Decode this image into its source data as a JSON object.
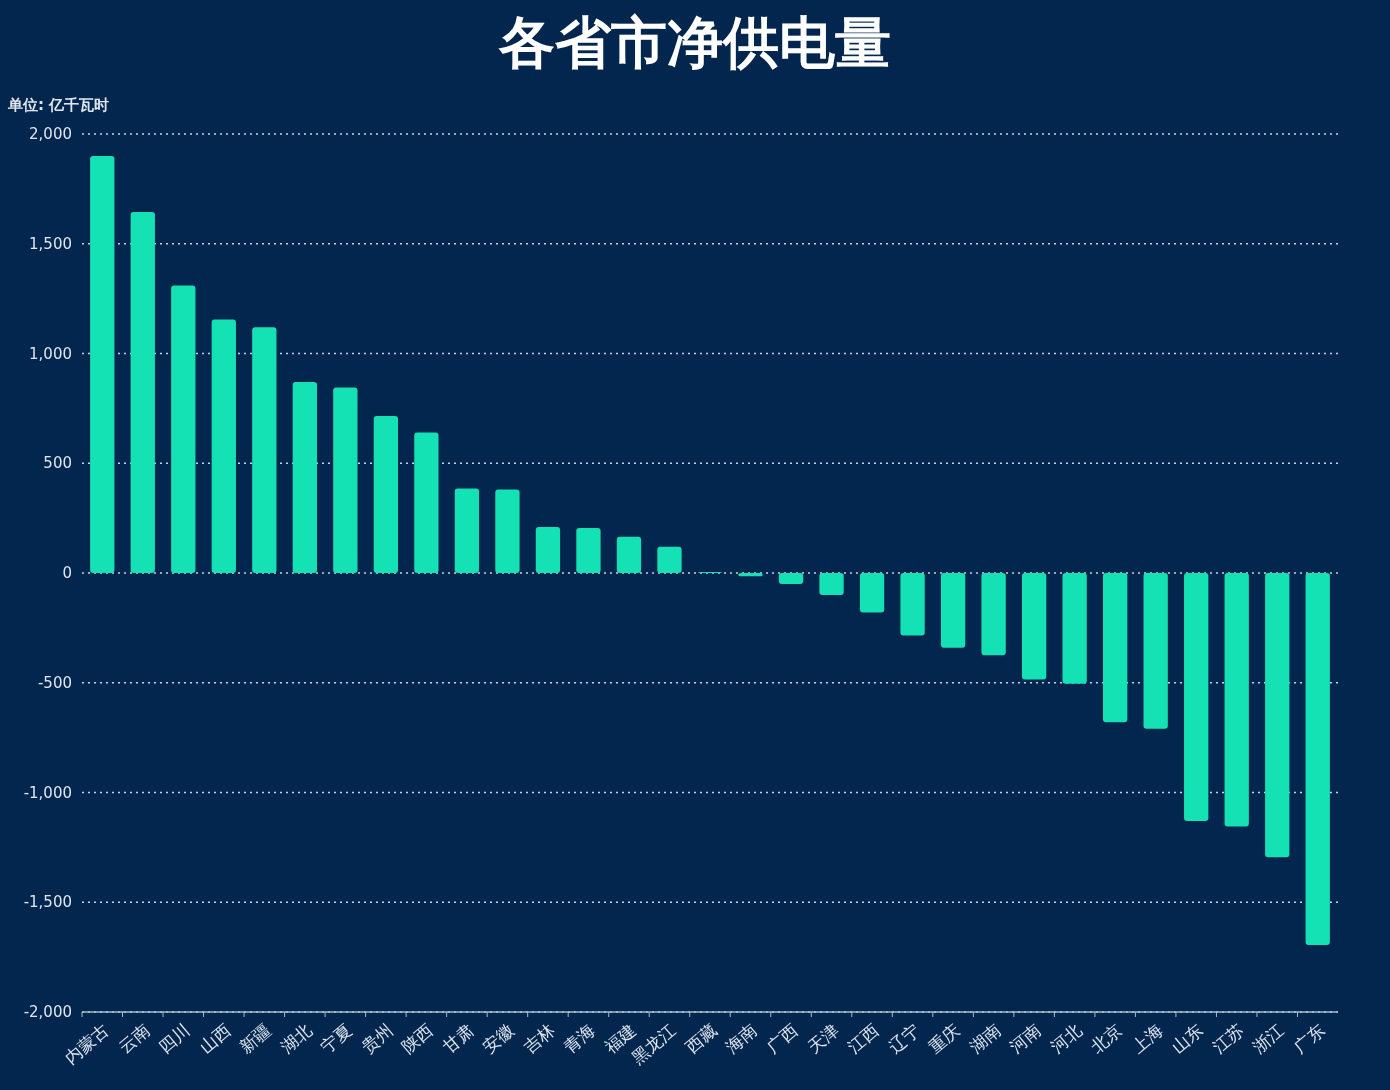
{
  "chart_data": {
    "type": "bar",
    "title": "各省市净供电量",
    "ylabel": "单位: 亿千瓦时",
    "categories": [
      "内蒙古",
      "云南",
      "四川",
      "山西",
      "新疆",
      "湖北",
      "宁夏",
      "贵州",
      "陕西",
      "甘肃",
      "安徽",
      "吉林",
      "青海",
      "福建",
      "黑龙江",
      "西藏",
      "海南",
      "广西",
      "天津",
      "江西",
      "辽宁",
      "重庆",
      "湖南",
      "河南",
      "河北",
      "北京",
      "上海",
      "山东",
      "江苏",
      "浙江",
      "广东"
    ],
    "values": [
      1900,
      1645,
      1310,
      1155,
      1120,
      870,
      845,
      715,
      640,
      385,
      380,
      210,
      205,
      165,
      120,
      5,
      -15,
      -50,
      -100,
      -180,
      -285,
      -340,
      -375,
      -485,
      -505,
      -680,
      -710,
      -1130,
      -1155,
      -1295,
      -1695
    ],
    "color": "#14e2b4",
    "ylim": [
      -2000,
      2000
    ],
    "yticks": [
      {
        "value": -2000,
        "label": "-2,000"
      },
      {
        "value": -1500,
        "label": "-1,500"
      },
      {
        "value": -1000,
        "label": "-1,000"
      },
      {
        "value": -500,
        "label": "-500"
      },
      0,
      {
        "value": 500,
        "label": "500"
      },
      {
        "value": 1000,
        "label": "1,000"
      },
      {
        "value": 1500,
        "label": "1,500"
      },
      {
        "value": 2000,
        "label": "2,000"
      }
    ],
    "grid": "y"
  }
}
